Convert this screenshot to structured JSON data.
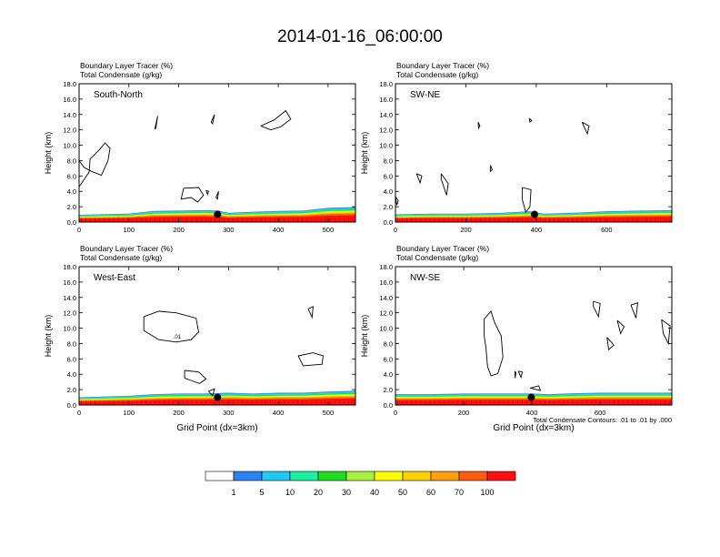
{
  "title": "2014-01-16_06:00:00",
  "footnote": "Total Condensate Contours: .01 to .01 by .000",
  "colorbar": {
    "colors": [
      "#ffffff",
      "#2b83f3",
      "#20c8f3",
      "#1cf0a0",
      "#20dc20",
      "#a8f040",
      "#ffff00",
      "#ffd000",
      "#ff9c10",
      "#ff5c10",
      "#ff1010"
    ],
    "labels": [
      "1",
      "5",
      "10",
      "20",
      "30",
      "40",
      "50",
      "60",
      "70",
      "100"
    ]
  },
  "chart_data": [
    {
      "type": "area",
      "panel_label": "South-North",
      "header": [
        "Boundary Layer Tracer    (%)",
        "Total Condensate    (g/kg)"
      ],
      "xlabel": "",
      "ylabel": "Height (km)",
      "xlim": [
        0,
        555
      ],
      "ylim": [
        0,
        18
      ],
      "xticks": [
        0,
        100,
        200,
        300,
        400,
        500
      ],
      "yticks": [
        0,
        2,
        4,
        6,
        8,
        10,
        12,
        14,
        16,
        18
      ],
      "ytick_labels": [
        "0.0",
        "2.0",
        "4.0",
        "6.0",
        "8.0",
        "10.0",
        "12.0",
        "14.0",
        "16.0",
        "18.0"
      ],
      "marker": {
        "x": 278,
        "y": 1.0
      },
      "tracer_top_km": [
        [
          0,
          0.95
        ],
        [
          100,
          1.1
        ],
        [
          150,
          1.45
        ],
        [
          200,
          1.5
        ],
        [
          250,
          1.55
        ],
        [
          280,
          1.5
        ],
        [
          300,
          1.2
        ],
        [
          350,
          1.35
        ],
        [
          400,
          1.45
        ],
        [
          450,
          1.5
        ],
        [
          500,
          1.85
        ],
        [
          555,
          1.95
        ]
      ],
      "contours": [
        [
          [
            0,
            4.6
          ],
          [
            20,
            6.5
          ],
          [
            22,
            8.2
          ],
          [
            42,
            9.5
          ],
          [
            52,
            10.3
          ],
          [
            62,
            9.6
          ],
          [
            58,
            8.0
          ],
          [
            45,
            6.1
          ],
          [
            25,
            6.6
          ],
          [
            10,
            7.1
          ],
          [
            0,
            8.0
          ]
        ],
        [
          [
            152,
            12.1
          ],
          [
            158,
            13.8
          ],
          [
            154,
            12.2
          ],
          [
            152,
            12.1
          ]
        ],
        [
          [
            265,
            13.0
          ],
          [
            272,
            14.0
          ],
          [
            268,
            12.8
          ],
          [
            265,
            13.0
          ]
        ],
        [
          [
            365,
            12.5
          ],
          [
            392,
            13.3
          ],
          [
            415,
            14.5
          ],
          [
            425,
            13.4
          ],
          [
            405,
            12.4
          ],
          [
            385,
            12.0
          ],
          [
            365,
            12.5
          ]
        ],
        [
          [
            210,
            4.4
          ],
          [
            240,
            4.5
          ],
          [
            250,
            3.5
          ],
          [
            238,
            2.6
          ],
          [
            225,
            3.2
          ],
          [
            205,
            3.0
          ],
          [
            210,
            4.4
          ]
        ],
        [
          [
            275,
            3.2
          ],
          [
            280,
            4.0
          ],
          [
            278,
            3.0
          ],
          [
            275,
            3.2
          ]
        ],
        [
          [
            255,
            4.1
          ],
          [
            260,
            4.0
          ],
          [
            258,
            3.6
          ],
          [
            255,
            4.1
          ]
        ]
      ]
    },
    {
      "type": "area",
      "panel_label": "SW-NE",
      "header": [
        "Boundary Layer Tracer    (%)",
        "Total Condensate    (g/kg)"
      ],
      "xlabel": "",
      "ylabel": "Height (km)",
      "xlim": [
        0,
        785
      ],
      "ylim": [
        0,
        18
      ],
      "xticks": [
        0,
        200,
        400,
        600
      ],
      "yticks": [
        0,
        2,
        4,
        6,
        8,
        10,
        12,
        14,
        16,
        18
      ],
      "ytick_labels": [
        "0.0",
        "2.0",
        "4.0",
        "6.0",
        "8.0",
        "10.0",
        "12.0",
        "14.0",
        "16.0",
        "18.0"
      ],
      "marker": {
        "x": 395,
        "y": 1.0
      },
      "tracer_top_km": [
        [
          0,
          1.0
        ],
        [
          100,
          1.1
        ],
        [
          200,
          1.1
        ],
        [
          300,
          1.2
        ],
        [
          380,
          1.4
        ],
        [
          420,
          1.1
        ],
        [
          500,
          1.2
        ],
        [
          600,
          1.4
        ],
        [
          700,
          1.5
        ],
        [
          785,
          1.55
        ]
      ],
      "contours": [
        [
          [
            235,
            13.0
          ],
          [
            240,
            12.5
          ],
          [
            236,
            12.2
          ],
          [
            235,
            13.0
          ]
        ],
        [
          [
            380,
            13.5
          ],
          [
            387,
            13.2
          ],
          [
            382,
            13.0
          ],
          [
            380,
            13.5
          ]
        ],
        [
          [
            530,
            13.0
          ],
          [
            550,
            12.5
          ],
          [
            545,
            11.5
          ],
          [
            530,
            13.0
          ]
        ],
        [
          [
            60,
            6.3
          ],
          [
            75,
            6.0
          ],
          [
            70,
            5.1
          ],
          [
            60,
            6.3
          ]
        ],
        [
          [
            130,
            6.3
          ],
          [
            150,
            5.0
          ],
          [
            145,
            3.5
          ],
          [
            130,
            5.6
          ],
          [
            130,
            6.3
          ]
        ],
        [
          [
            270,
            7.4
          ],
          [
            275,
            6.8
          ],
          [
            270,
            6.6
          ],
          [
            270,
            7.4
          ]
        ],
        [
          [
            360,
            4.5
          ],
          [
            385,
            4.2
          ],
          [
            382,
            2.0
          ],
          [
            370,
            1.3
          ],
          [
            360,
            3.0
          ],
          [
            360,
            4.5
          ]
        ],
        [
          [
            0,
            3.3
          ],
          [
            8,
            2.8
          ],
          [
            4,
            2.2
          ],
          [
            0,
            3.3
          ]
        ]
      ]
    },
    {
      "type": "area",
      "panel_label": "West-East",
      "header": [
        "Boundary Layer Tracer    (%)",
        "Total Condensate    (g/kg)"
      ],
      "xlabel": "Grid Point  (dx=3km)",
      "ylabel": "Height (km)",
      "xlim": [
        0,
        555
      ],
      "ylim": [
        0,
        18
      ],
      "xticks": [
        0,
        100,
        200,
        300,
        400,
        500
      ],
      "yticks": [
        0,
        2,
        4,
        6,
        8,
        10,
        12,
        14,
        16,
        18
      ],
      "ytick_labels": [
        "0.0",
        "2.0",
        "4.0",
        "6.0",
        "8.0",
        "10.0",
        "12.0",
        "14.0",
        "16.0",
        "18.0"
      ],
      "marker": {
        "x": 278,
        "y": 1.0
      },
      "contour_label": {
        "x": 197,
        "y": 9.0,
        "text": ".01"
      },
      "tracer_top_km": [
        [
          0,
          1.0
        ],
        [
          100,
          1.2
        ],
        [
          150,
          1.4
        ],
        [
          200,
          1.5
        ],
        [
          250,
          1.5
        ],
        [
          300,
          1.6
        ],
        [
          350,
          1.5
        ],
        [
          400,
          1.6
        ],
        [
          450,
          1.6
        ],
        [
          500,
          1.75
        ],
        [
          555,
          1.85
        ]
      ],
      "contours": [
        [
          [
            130,
            11.5
          ],
          [
            160,
            12.2
          ],
          [
            195,
            12.0
          ],
          [
            235,
            11.3
          ],
          [
            240,
            9.5
          ],
          [
            225,
            8.5
          ],
          [
            195,
            8.2
          ],
          [
            160,
            8.5
          ],
          [
            130,
            9.7
          ],
          [
            130,
            11.5
          ]
        ],
        [
          [
            460,
            12.5
          ],
          [
            470,
            12.8
          ],
          [
            468,
            11.4
          ],
          [
            460,
            12.5
          ]
        ],
        [
          [
            440,
            6.4
          ],
          [
            470,
            6.8
          ],
          [
            490,
            6.4
          ],
          [
            488,
            5.3
          ],
          [
            450,
            5.1
          ],
          [
            440,
            6.4
          ]
        ],
        [
          [
            212,
            4.5
          ],
          [
            240,
            4.3
          ],
          [
            255,
            3.4
          ],
          [
            242,
            2.8
          ],
          [
            225,
            3.2
          ],
          [
            212,
            3.5
          ],
          [
            212,
            4.5
          ]
        ],
        [
          [
            260,
            1.8
          ],
          [
            272,
            2.1
          ],
          [
            268,
            1.2
          ],
          [
            260,
            1.8
          ]
        ]
      ]
    },
    {
      "type": "area",
      "panel_label": "NW-SE",
      "header": [
        "Boundary Layer Tracer    (%)",
        "Total Condensate    (g/kg)"
      ],
      "xlabel": "Grid Point  (dx=3km)",
      "ylabel": "Height (km)",
      "xlim": [
        0,
        810
      ],
      "ylim": [
        0,
        18
      ],
      "xticks": [
        0,
        200,
        400,
        600
      ],
      "yticks": [
        0,
        2,
        4,
        6,
        8,
        10,
        12,
        14,
        16,
        18
      ],
      "ytick_labels": [
        "0.0",
        "2.0",
        "4.0",
        "6.0",
        "8.0",
        "10.0",
        "12.0",
        "14.0",
        "16.0",
        "18.0"
      ],
      "marker": {
        "x": 398,
        "y": 1.0
      },
      "tracer_top_km": [
        [
          0,
          1.4
        ],
        [
          100,
          1.4
        ],
        [
          200,
          1.5
        ],
        [
          300,
          1.5
        ],
        [
          400,
          1.5
        ],
        [
          450,
          1.4
        ],
        [
          500,
          1.5
        ],
        [
          600,
          1.6
        ],
        [
          700,
          1.6
        ],
        [
          810,
          1.6
        ]
      ],
      "contours": [
        [
          [
            260,
            11.2
          ],
          [
            280,
            12.2
          ],
          [
            290,
            10.8
          ],
          [
            310,
            9.0
          ],
          [
            315,
            6.2
          ],
          [
            300,
            4.1
          ],
          [
            280,
            3.8
          ],
          [
            270,
            5.0
          ],
          [
            265,
            7.5
          ],
          [
            260,
            9.0
          ],
          [
            260,
            11.2
          ]
        ],
        [
          [
            580,
            13.5
          ],
          [
            600,
            13.2
          ],
          [
            595,
            11.5
          ],
          [
            580,
            12.8
          ],
          [
            580,
            13.5
          ]
        ],
        [
          [
            650,
            11.0
          ],
          [
            670,
            10.2
          ],
          [
            660,
            9.3
          ],
          [
            650,
            11.0
          ]
        ],
        [
          [
            690,
            13.0
          ],
          [
            710,
            13.3
          ],
          [
            705,
            11.3
          ],
          [
            690,
            13.0
          ]
        ],
        [
          [
            780,
            11.1
          ],
          [
            805,
            10.3
          ],
          [
            800,
            8.0
          ],
          [
            785,
            9.3
          ],
          [
            780,
            11.1
          ]
        ],
        [
          [
            620,
            8.8
          ],
          [
            640,
            7.8
          ],
          [
            625,
            7.2
          ],
          [
            620,
            8.8
          ]
        ],
        [
          [
            360,
            4.4
          ],
          [
            372,
            4.3
          ],
          [
            368,
            3.6
          ],
          [
            360,
            4.4
          ]
        ],
        [
          [
            395,
            2.2
          ],
          [
            420,
            2.5
          ],
          [
            425,
            1.9
          ],
          [
            395,
            2.2
          ]
        ],
        [
          [
            350,
            4.4
          ],
          [
            353,
            4.2
          ],
          [
            351,
            3.5
          ],
          [
            350,
            4.4
          ]
        ]
      ]
    }
  ]
}
